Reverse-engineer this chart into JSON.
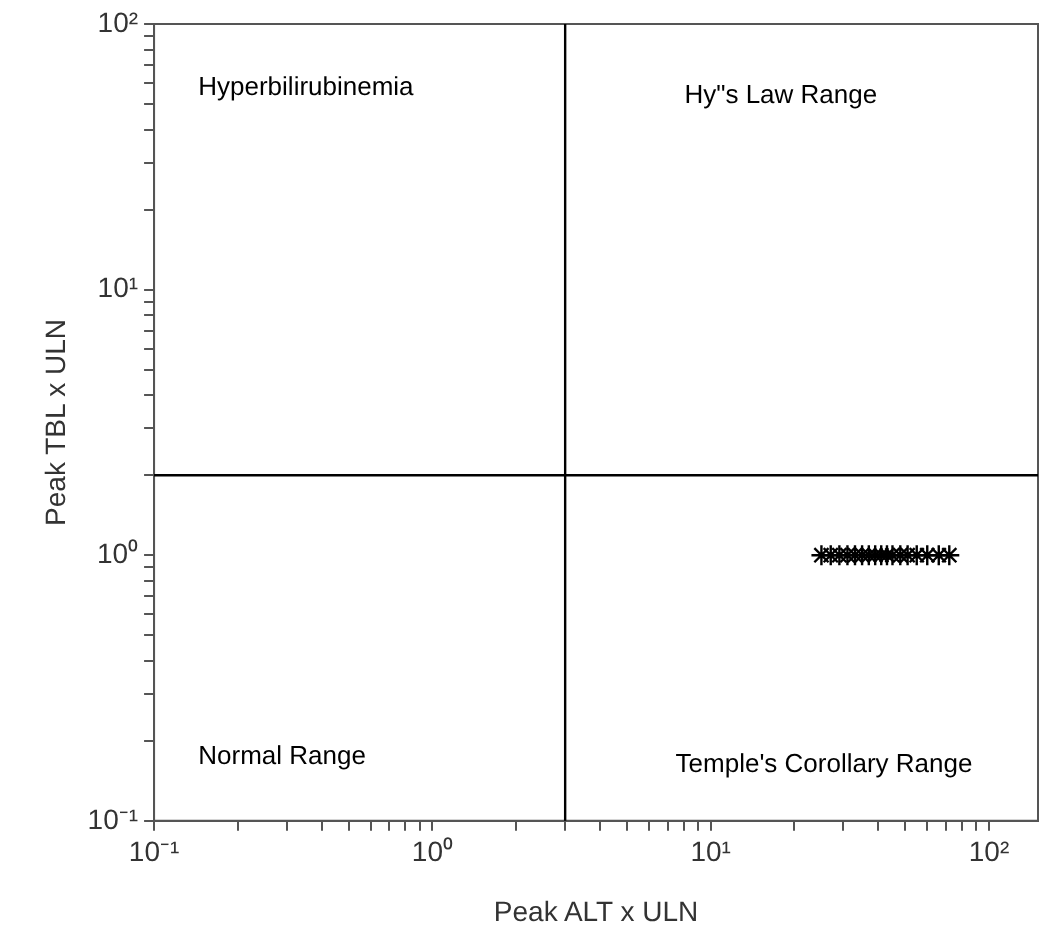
{
  "chart_data": {
    "type": "scatter",
    "xlabel": "Peak ALT x ULN",
    "ylabel": "Peak TBL x ULN",
    "log": "xy",
    "grid": false,
    "legend": false,
    "marker": "cross",
    "xlim": [
      0.1,
      150
    ],
    "ylim": [
      0.1,
      100
    ],
    "xticks": [
      {
        "value": 0.1,
        "label": "10⁻¹"
      },
      {
        "value": 0.2,
        "label": null
      },
      {
        "value": 0.3,
        "label": null
      },
      {
        "value": 0.4,
        "label": null
      },
      {
        "value": 0.5,
        "label": null
      },
      {
        "value": 0.6,
        "label": null
      },
      {
        "value": 0.7,
        "label": null
      },
      {
        "value": 0.8,
        "label": null
      },
      {
        "value": 0.9,
        "label": null
      },
      {
        "value": 1,
        "label": "10⁰"
      },
      {
        "value": 2,
        "label": null
      },
      {
        "value": 3,
        "label": null
      },
      {
        "value": 4,
        "label": null
      },
      {
        "value": 5,
        "label": null
      },
      {
        "value": 6,
        "label": null
      },
      {
        "value": 7,
        "label": null
      },
      {
        "value": 8,
        "label": null
      },
      {
        "value": 9,
        "label": null
      },
      {
        "value": 10,
        "label": "10¹"
      },
      {
        "value": 20,
        "label": null
      },
      {
        "value": 30,
        "label": null
      },
      {
        "value": 40,
        "label": null
      },
      {
        "value": 50,
        "label": null
      },
      {
        "value": 60,
        "label": null
      },
      {
        "value": 70,
        "label": null
      },
      {
        "value": 80,
        "label": null
      },
      {
        "value": 90,
        "label": null
      },
      {
        "value": 100,
        "label": "10²"
      }
    ],
    "yticks": [
      {
        "value": 0.1,
        "label": "10⁻¹"
      },
      {
        "value": 0.2,
        "label": null
      },
      {
        "value": 0.3,
        "label": null
      },
      {
        "value": 0.4,
        "label": null
      },
      {
        "value": 0.5,
        "label": null
      },
      {
        "value": 0.6,
        "label": null
      },
      {
        "value": 0.7,
        "label": null
      },
      {
        "value": 0.8,
        "label": null
      },
      {
        "value": 0.9,
        "label": null
      },
      {
        "value": 1,
        "label": "10⁰"
      },
      {
        "value": 2,
        "label": null
      },
      {
        "value": 3,
        "label": null
      },
      {
        "value": 4,
        "label": null
      },
      {
        "value": 5,
        "label": null
      },
      {
        "value": 6,
        "label": null
      },
      {
        "value": 7,
        "label": null
      },
      {
        "value": 8,
        "label": null
      },
      {
        "value": 9,
        "label": null
      },
      {
        "value": 10,
        "label": "10¹"
      },
      {
        "value": 20,
        "label": null
      },
      {
        "value": 30,
        "label": null
      },
      {
        "value": 40,
        "label": null
      },
      {
        "value": 50,
        "label": null
      },
      {
        "value": 60,
        "label": null
      },
      {
        "value": 70,
        "label": null
      },
      {
        "value": 80,
        "label": null
      },
      {
        "value": 90,
        "label": null
      },
      {
        "value": 100,
        "label": "10²"
      }
    ],
    "ref_lines": [
      {
        "axis": "x",
        "value": 3,
        "color": "#000000"
      },
      {
        "axis": "y",
        "value": 2,
        "color": "#000000"
      }
    ],
    "annotations": [
      "Hyperbilirubinemia",
      "Hy\"s Law Range",
      "Normal Range",
      "Temple's Corollary Range"
    ],
    "series": [
      {
        "color": "#000000",
        "x": [
          25,
          27,
          29,
          31,
          33,
          35,
          37,
          39,
          41,
          43,
          45,
          48,
          51,
          55,
          60,
          66,
          72
        ],
        "values": [
          1,
          1,
          1,
          1,
          1,
          1,
          1,
          1,
          1,
          1,
          1,
          1,
          1,
          1,
          1,
          1,
          1
        ]
      }
    ]
  }
}
